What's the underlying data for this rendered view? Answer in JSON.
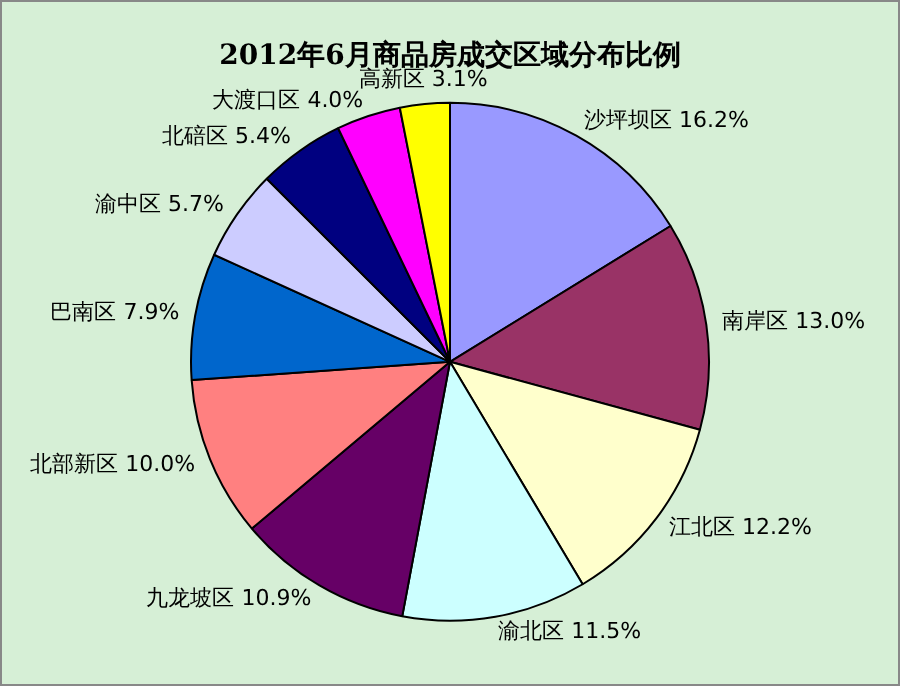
{
  "chart_data": {
    "type": "pie",
    "title": "2012年6月商品房成交区域分布比例",
    "categories": [
      "沙坪坝区",
      "南岸区",
      "江北区",
      "渝北区",
      "九龙坡区",
      "北部新区",
      "巴南区",
      "渝中区",
      "北碚区",
      "大渡口区",
      "高新区"
    ],
    "values": [
      16.2,
      13.0,
      12.2,
      11.5,
      10.9,
      10.0,
      7.9,
      5.7,
      5.4,
      4.0,
      3.1
    ],
    "colors": [
      "#9999ff",
      "#993366",
      "#ffffcc",
      "#ccffff",
      "#660066",
      "#ff8080",
      "#0066cc",
      "#ccccff",
      "#000080",
      "#ff00ff",
      "#ffff00"
    ],
    "value_labels": [
      "16.2%",
      "13.0%",
      "12.2%",
      "11.5%",
      "10.9%",
      "10.0%",
      "7.9%",
      "5.7%",
      "5.4%",
      "4.0%",
      "3.1%"
    ],
    "legend": false
  }
}
